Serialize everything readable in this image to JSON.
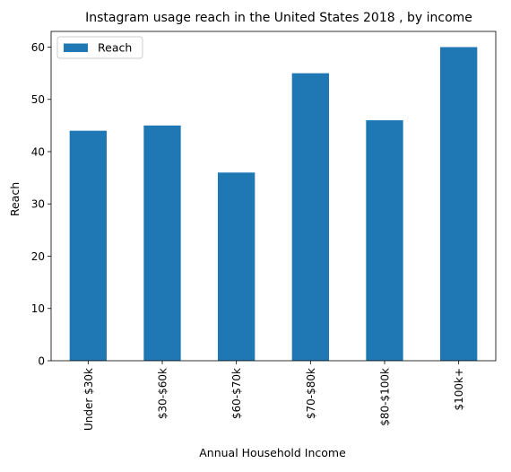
{
  "chart_data": {
    "type": "bar",
    "title": "Instagram usage reach in the United States 2018 , by income",
    "xlabel": "Annual Household Income",
    "ylabel": "Reach",
    "categories": [
      "Under $30k",
      "$30-$60k",
      "$60-$70k",
      "$70-$80k",
      "$80-$100k",
      "$100k+"
    ],
    "series": [
      {
        "name": "Reach",
        "values": [
          44,
          45,
          36,
          55,
          46,
          60
        ],
        "color": "#1f77b4"
      }
    ],
    "ylim": [
      0,
      63
    ],
    "yticks": [
      0,
      10,
      20,
      30,
      40,
      50,
      60
    ],
    "grid": false,
    "legend": {
      "placement": "top-left"
    }
  }
}
